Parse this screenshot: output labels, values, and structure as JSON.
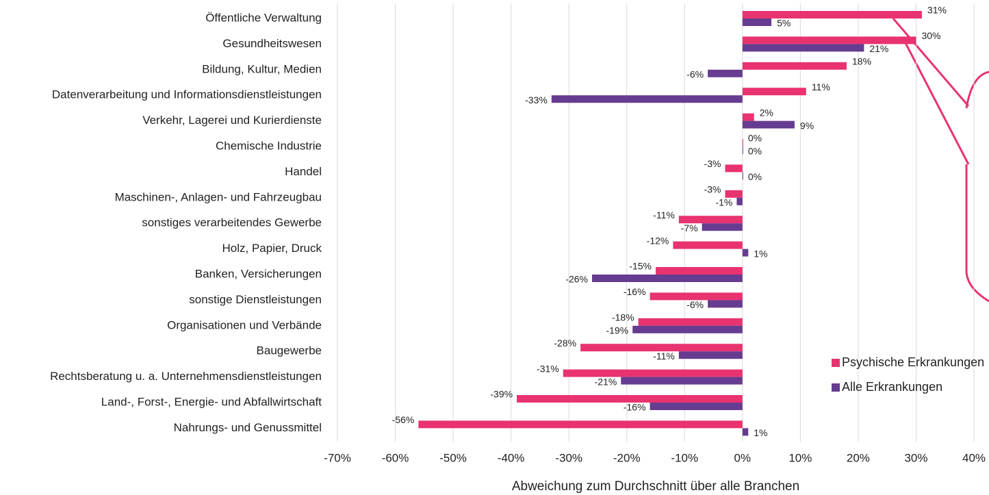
{
  "chart_data": {
    "type": "bar",
    "orientation": "horizontal",
    "x_label": "Abweichung zum Durchschnitt über alle Branchen",
    "categories": [
      "Öffentliche Verwaltung",
      "Gesundheitswesen",
      "Bildung, Kultur, Medien",
      "Datenverarbeitung und Informationsdienstleistungen",
      "Verkehr, Lagerei und Kurierdienste",
      "Chemische Industrie",
      "Handel",
      "Maschinen-, Anlagen- und Fahrzeugbau",
      "sonstiges verarbeitendes Gewerbe",
      "Holz, Papier, Druck",
      "Banken, Versicherungen",
      "sonstige Dienstleistungen",
      "Organisationen und Verbände",
      "Baugewerbe",
      "Rechtsberatung u. a. Unternehmensdienstleistungen",
      "Land-, Forst-,  Energie- und Abfallwirtschaft",
      "Nahrungs- und Genussmittel"
    ],
    "series": [
      {
        "name": "Psychische Erkrankungen",
        "color": "#e8336f",
        "values": [
          31,
          30,
          18,
          11,
          2,
          0,
          -3,
          -3,
          -11,
          -12,
          -15,
          -16,
          -18,
          -28,
          -31,
          -39,
          -56
        ],
        "value_labels": [
          "31%",
          "30%",
          "18%",
          "11%",
          "2%",
          "0%",
          "-3%",
          "-3%",
          "-11%",
          "-12%",
          "-15%",
          "-16%",
          "-18%",
          "-28%",
          "-31%",
          "-39%",
          "-56%"
        ]
      },
      {
        "name": "Alle  Erkrankungen",
        "color": "#663c91",
        "values": [
          5,
          21,
          -6,
          -33,
          9,
          0,
          0,
          -1,
          -7,
          1,
          -26,
          -6,
          -19,
          -11,
          -21,
          -16,
          1
        ],
        "value_labels": [
          "5%",
          "21%",
          "-6%",
          "-33%",
          "9%",
          "0%",
          "0%",
          "-1%",
          "-7%",
          "1%",
          "-26%",
          "-6%",
          "-19%",
          "-11%",
          "-21%",
          "-16%",
          "1%"
        ]
      }
    ],
    "xlim": [
      -70,
      40
    ],
    "xticks": [
      {
        "value": -70,
        "label": "-70%"
      },
      {
        "value": -60,
        "label": "-60%"
      },
      {
        "value": -50,
        "label": "-50%"
      },
      {
        "value": -40,
        "label": "-40%"
      },
      {
        "value": -30,
        "label": "-30%"
      },
      {
        "value": -20,
        "label": "-20%"
      },
      {
        "value": -10,
        "label": "-10%"
      },
      {
        "value": 0,
        "label": "0%"
      },
      {
        "value": 10,
        "label": "10%"
      },
      {
        "value": 20,
        "label": "20%"
      },
      {
        "value": 30,
        "label": "30%"
      },
      {
        "value": 40,
        "label": "40%"
      }
    ],
    "grid": true,
    "legend": "lower right"
  }
}
